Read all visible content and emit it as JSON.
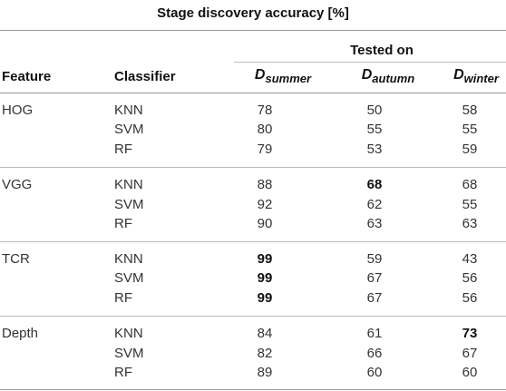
{
  "title": "Stage discovery accuracy [%]",
  "tested_on": "Tested on",
  "headers": {
    "feature": "Feature",
    "classifier": "Classifier",
    "d_main": "D",
    "d1_sub": "summer",
    "d2_sub": "autumn",
    "d3_sub": "winter"
  },
  "groups": [
    {
      "feature": "HOG",
      "rows": [
        {
          "classifier": "KNN",
          "v1": "78",
          "v2": "50",
          "v3": "58"
        },
        {
          "classifier": "SVM",
          "v1": "80",
          "v2": "55",
          "v3": "55"
        },
        {
          "classifier": "RF",
          "v1": "79",
          "v2": "53",
          "v3": "59"
        }
      ]
    },
    {
      "feature": "VGG",
      "rows": [
        {
          "classifier": "KNN",
          "v1": "88",
          "v2": "68",
          "v3": "68"
        },
        {
          "classifier": "SVM",
          "v1": "92",
          "v2": "62",
          "v3": "55"
        },
        {
          "classifier": "RF",
          "v1": "90",
          "v2": "63",
          "v3": "63"
        }
      ]
    },
    {
      "feature": "TCR",
      "rows": [
        {
          "classifier": "KNN",
          "v1": "99",
          "v2": "59",
          "v3": "43"
        },
        {
          "classifier": "SVM",
          "v1": "99",
          "v2": "67",
          "v3": "56"
        },
        {
          "classifier": "RF",
          "v1": "99",
          "v2": "67",
          "v3": "56"
        }
      ]
    },
    {
      "feature": "Depth",
      "rows": [
        {
          "classifier": "KNN",
          "v1": "84",
          "v2": "61",
          "v3": "73"
        },
        {
          "classifier": "SVM",
          "v1": "82",
          "v2": "66",
          "v3": "67"
        },
        {
          "classifier": "RF",
          "v1": "89",
          "v2": "60",
          "v3": "60"
        }
      ]
    }
  ]
}
